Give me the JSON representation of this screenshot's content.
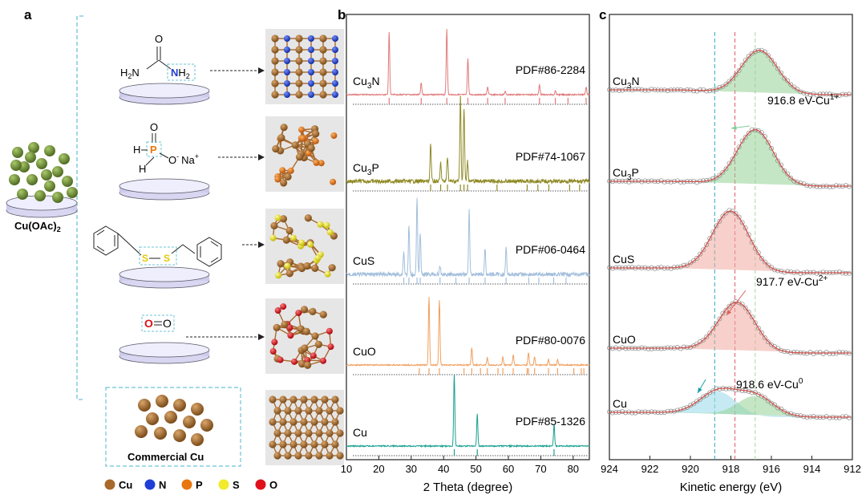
{
  "panel_labels": {
    "a": "a",
    "b": "b",
    "c": "c"
  },
  "panel_a": {
    "precursor": "Cu(OAc)",
    "precursor_sub": "2",
    "commercial": "Commercial Cu",
    "urea": {
      "o": "O",
      "h2n": "H",
      "h2n_sub": "2",
      "n_left": "N",
      "n_right": "N",
      "h_right": "H",
      "h_right_sub": "2"
    },
    "hypophosphite": {
      "o_top": "O",
      "p": "P",
      "o_minus": "O",
      "minus": "-",
      "na": "Na",
      "plus": "+",
      "h1": "H",
      "h2": "H"
    },
    "disulfide": {
      "s1": "S",
      "s2": "S"
    },
    "oxygen": {
      "o1": "O",
      "o2": "O"
    },
    "legend": [
      {
        "name": "Cu",
        "color": "#a8692a"
      },
      {
        "name": "N",
        "color": "#1f3fd6"
      },
      {
        "name": "P",
        "color": "#e8760f"
      },
      {
        "name": "S",
        "color": "#f2ea2c"
      },
      {
        "name": "O",
        "color": "#e0101a"
      }
    ]
  },
  "chart_data": [
    {
      "type": "line",
      "title": "",
      "xlabel": "2 Theta (degree)",
      "ylabel": "",
      "xlim": [
        10,
        85
      ],
      "xticks": [
        10,
        20,
        30,
        40,
        50,
        60,
        70,
        80
      ],
      "series": [
        {
          "name": "Cu3N",
          "label": "Cu",
          "sub": "3",
          "tail": "N",
          "pdf": "PDF#86-2284",
          "color": "#e07a7a",
          "peaks": [
            [
              23.2,
              0.95
            ],
            [
              33.1,
              0.18
            ],
            [
              41.0,
              1.0
            ],
            [
              47.5,
              0.55
            ],
            [
              53.6,
              0.12
            ],
            [
              59.0,
              0.05
            ],
            [
              69.6,
              0.15
            ],
            [
              74.5,
              0.06
            ],
            [
              84.0,
              0.12
            ]
          ],
          "refs": [
            23.2,
            33.1,
            41.0,
            47.5,
            53.6,
            59.0,
            69.6,
            74.5,
            78.4,
            84.0
          ]
        },
        {
          "name": "Cu3P",
          "label": "Cu",
          "sub": "3",
          "tail": "P",
          "pdf": "PDF#74-1067",
          "color": "#8f8a25",
          "peaks": [
            [
              36.0,
              0.45
            ],
            [
              39.1,
              0.22
            ],
            [
              41.2,
              0.3
            ],
            [
              45.2,
              1.0
            ],
            [
              46.3,
              0.85
            ],
            [
              47.4,
              0.25
            ]
          ],
          "refs": [
            36.0,
            39.1,
            41.2,
            45.2,
            46.3,
            47.4,
            56.5,
            65.8,
            69.1,
            72.5,
            78.9,
            82.0
          ]
        },
        {
          "name": "CuS",
          "label": "CuS",
          "sub": "",
          "tail": "",
          "pdf": "PDF#06-0464",
          "color": "#a3bfdc",
          "peaks": [
            [
              27.7,
              0.3
            ],
            [
              29.3,
              0.65
            ],
            [
              31.8,
              1.0
            ],
            [
              32.8,
              0.55
            ],
            [
              38.9,
              0.1
            ],
            [
              47.9,
              0.85
            ],
            [
              52.8,
              0.35
            ],
            [
              59.3,
              0.35
            ]
          ],
          "refs": [
            27.7,
            29.3,
            31.8,
            32.8,
            38.9,
            43.8,
            47.9,
            52.8,
            59.3,
            66.3,
            69.4,
            74.0,
            77.8
          ]
        },
        {
          "name": "CuO",
          "label": "CuO",
          "sub": "",
          "tail": "",
          "pdf": "PDF#80-0076",
          "color": "#f0a060",
          "peaks": [
            [
              35.5,
              1.0
            ],
            [
              38.7,
              0.95
            ],
            [
              48.7,
              0.25
            ],
            [
              53.5,
              0.1
            ],
            [
              58.3,
              0.12
            ],
            [
              61.5,
              0.15
            ],
            [
              66.2,
              0.18
            ],
            [
              68.1,
              0.12
            ],
            [
              72.4,
              0.08
            ],
            [
              75.2,
              0.08
            ]
          ],
          "refs": [
            32.5,
            35.5,
            38.7,
            46.3,
            48.7,
            51.4,
            53.5,
            56.8,
            58.3,
            61.5,
            65.8,
            66.2,
            68.1,
            72.4,
            75.2,
            80.2,
            82.5,
            83.3
          ]
        },
        {
          "name": "Cu",
          "label": "Cu",
          "sub": "",
          "tail": "",
          "pdf": "PDF#85-1326",
          "color": "#1aa090",
          "peaks": [
            [
              43.3,
              1.0
            ],
            [
              50.4,
              0.45
            ],
            [
              74.1,
              0.3
            ]
          ],
          "refs": [
            43.3,
            50.4,
            74.1
          ]
        }
      ]
    },
    {
      "type": "line",
      "title": "",
      "xlabel": "Kinetic energy (eV)",
      "ylabel": "",
      "xlim": [
        924,
        912
      ],
      "xticks": [
        924,
        922,
        920,
        918,
        916,
        914,
        912
      ],
      "markers": [
        918.8,
        917.8,
        916.8
      ],
      "series": [
        {
          "name": "Cu3N",
          "label": "Cu",
          "sub": "3",
          "tail": "N",
          "peaks": [
            [
              916.6,
              1.0,
              "green"
            ]
          ]
        },
        {
          "name": "Cu3P",
          "label": "Cu",
          "sub": "3",
          "tail": "P",
          "peaks": [
            [
              916.8,
              1.0,
              "green"
            ]
          ]
        },
        {
          "name": "CuS",
          "label": "CuS",
          "sub": "",
          "tail": "",
          "peaks": [
            [
              918.0,
              1.0,
              "red"
            ]
          ]
        },
        {
          "name": "CuO",
          "label": "CuO",
          "sub": "",
          "tail": "",
          "peaks": [
            [
              917.7,
              1.0,
              "red"
            ]
          ]
        },
        {
          "name": "Cu",
          "label": "Cu",
          "sub": "",
          "tail": "",
          "peaks": [
            [
              918.6,
              0.55,
              "blue"
            ],
            [
              916.8,
              0.5,
              "green"
            ]
          ]
        }
      ],
      "annotations": [
        {
          "text": "916.8 eV-Cu",
          "sup": "1+"
        },
        {
          "text": "917.7 eV-Cu",
          "sup": "2+"
        },
        {
          "text": "918.6 eV-Cu",
          "sup": "0"
        }
      ]
    }
  ]
}
